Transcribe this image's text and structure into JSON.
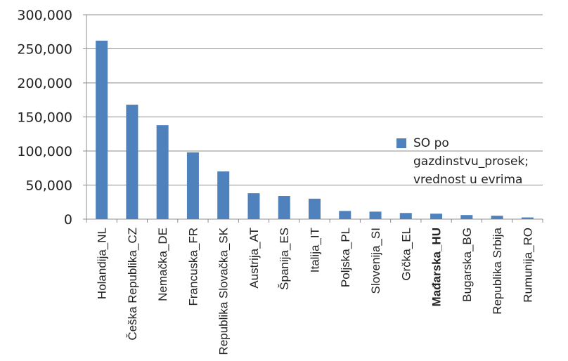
{
  "chart_data": {
    "type": "bar",
    "title": "",
    "xlabel": "",
    "ylabel": "",
    "ylim": [
      0,
      300000
    ],
    "y_ticks": [
      0,
      50000,
      100000,
      150000,
      200000,
      250000,
      300000
    ],
    "y_tick_labels": [
      "0",
      "50,000",
      "100,000",
      "150,000",
      "200,000",
      "250,000",
      "300,000"
    ],
    "grid": true,
    "legend_position": "right",
    "categories": [
      "Holandija_NL",
      "Češka Republika_CZ",
      "Nemačka_DE",
      "Francuska_FR",
      "Republika Slovačka_SK",
      "Austrija_AT",
      "Španija_ES",
      "Italija_IT",
      "Poljska_PL",
      "Slovenija_SI",
      "Grčka_EL",
      "Mađarska_HU",
      "Bugarska_BG",
      "Republika Srbija",
      "Rumunija_RO"
    ],
    "highlighted_category": "Mađarska_HU",
    "series": [
      {
        "name": "SO po gazdinstvu_prosek; vrednost u evrima",
        "legend_lines": [
          "SO po",
          "gazdinstvu_prosek;",
          "vrednost u evrima"
        ],
        "color": "#4f81bd",
        "values": [
          262000,
          168000,
          138000,
          98000,
          70000,
          38000,
          34000,
          30000,
          12000,
          11000,
          9000,
          8000,
          6000,
          5000,
          2500
        ]
      }
    ]
  }
}
